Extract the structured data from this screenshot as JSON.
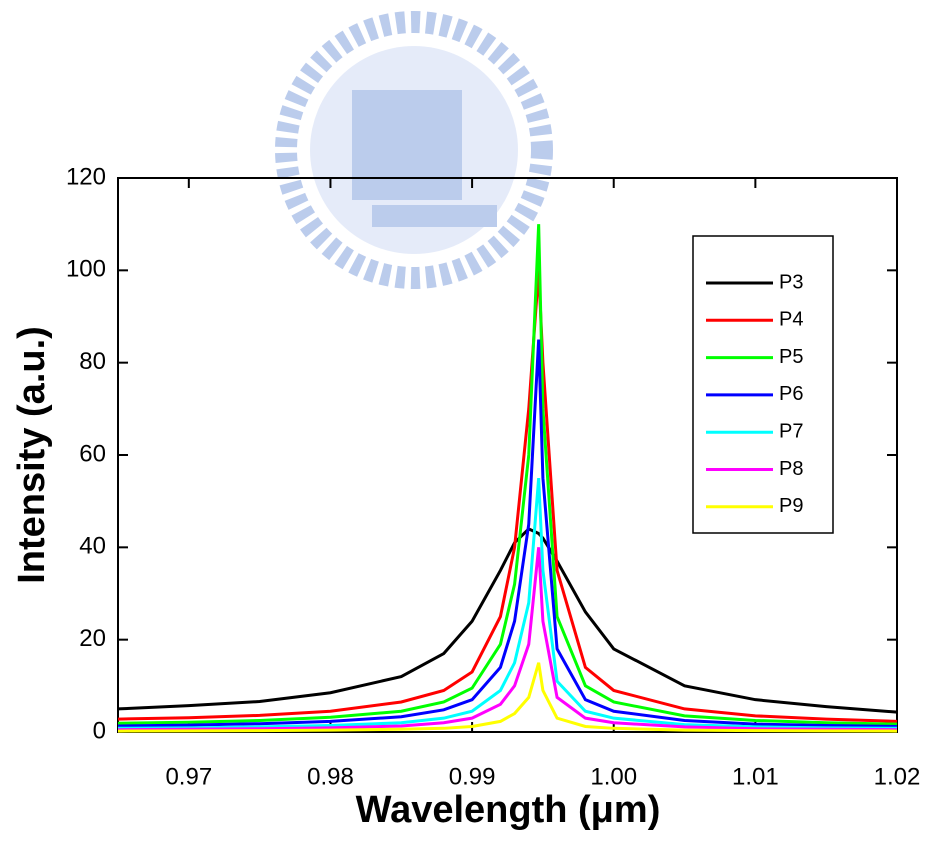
{
  "chart_data": {
    "type": "line",
    "x_label": "Wavelength (μm)",
    "y_label": "Intensity (a.u.)",
    "x": [
      0.965,
      0.97,
      0.975,
      0.98,
      0.985,
      0.988,
      0.99,
      0.992,
      0.993,
      0.994,
      0.9947,
      0.995,
      0.996,
      0.998,
      1.0,
      1.005,
      1.01,
      1.015,
      1.02
    ],
    "series": [
      {
        "name": "P3",
        "color": "#000000",
        "values": [
          5,
          5.7,
          6.6,
          8.5,
          12,
          17,
          24,
          35,
          41,
          44,
          43,
          42,
          37,
          26,
          18,
          10,
          7,
          5.5,
          4.3
        ]
      },
      {
        "name": "P4",
        "color": "#ff0000",
        "values": [
          2.8,
          3.1,
          3.6,
          4.5,
          6.5,
          9,
          13,
          25,
          40,
          70,
          100,
          80,
          35,
          14,
          9,
          5,
          3.5,
          2.8,
          2.3
        ]
      },
      {
        "name": "P5",
        "color": "#00ff00",
        "values": [
          1.9,
          2.1,
          2.5,
          3.2,
          4.5,
          6.5,
          9.5,
          19,
          32,
          60,
          110,
          70,
          25,
          10,
          6.5,
          3.5,
          2.5,
          2,
          1.7
        ]
      },
      {
        "name": "P6",
        "color": "#0000ff",
        "values": [
          1.3,
          1.5,
          1.8,
          2.3,
          3.3,
          4.8,
          7,
          14,
          24,
          45,
          85,
          55,
          18,
          7,
          4.5,
          2.5,
          1.7,
          1.4,
          1.2
        ]
      },
      {
        "name": "P7",
        "color": "#00ffff",
        "values": [
          0.8,
          0.9,
          1.1,
          1.4,
          2,
          3,
          4.5,
          9,
          15,
          28,
          55,
          35,
          11,
          4.5,
          3,
          1.6,
          1.1,
          0.9,
          0.8
        ]
      },
      {
        "name": "P8",
        "color": "#ff00ff",
        "values": [
          0.5,
          0.6,
          0.7,
          0.9,
          1.3,
          2,
          3,
          6,
          10,
          19,
          40,
          24,
          7.5,
          3,
          2,
          1.1,
          0.7,
          0.6,
          0.5
        ]
      },
      {
        "name": "P9",
        "color": "#ffff00",
        "values": [
          0.2,
          0.25,
          0.3,
          0.4,
          0.6,
          0.8,
          1.2,
          2.3,
          4,
          7.5,
          15,
          9,
          3,
          1.2,
          0.8,
          0.4,
          0.3,
          0.25,
          0.2
        ]
      }
    ],
    "xlim": [
      0.965,
      1.02
    ],
    "ylim": [
      0,
      120
    ],
    "xticks": [
      0.97,
      0.98,
      0.99,
      {
        "value": 1.0,
        "label": "1.00"
      },
      1.01,
      1.02
    ],
    "yticks": [
      0,
      20,
      40,
      60,
      80,
      100,
      120
    ],
    "legend": "upper-right"
  }
}
